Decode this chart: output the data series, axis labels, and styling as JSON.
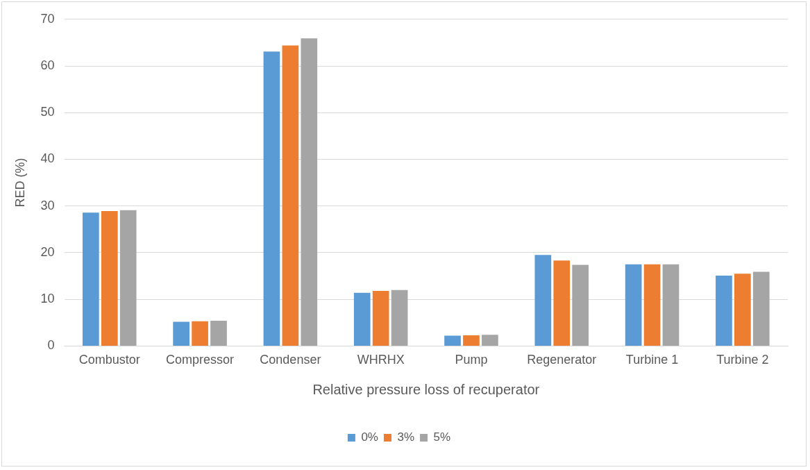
{
  "chart_data": {
    "type": "bar",
    "xlabel": "Relative pressure loss of recuperator",
    "ylabel": "RED (%)",
    "categories": [
      "Combustor",
      "Compressor",
      "Condenser",
      "WHRHX",
      "Pump",
      "Regenerator",
      "Turbine 1",
      "Turbine 2"
    ],
    "series": [
      {
        "name": "0%",
        "color": "#5b9bd5",
        "values": [
          28.6,
          5.2,
          63.1,
          11.4,
          2.2,
          19.5,
          17.5,
          15.1
        ]
      },
      {
        "name": "3%",
        "color": "#ed7d31",
        "values": [
          28.9,
          5.3,
          64.4,
          11.8,
          2.3,
          18.3,
          17.5,
          15.5
        ]
      },
      {
        "name": "5%",
        "color": "#a5a5a5",
        "values": [
          29.1,
          5.4,
          65.9,
          12.0,
          2.4,
          17.4,
          17.5,
          15.9
        ]
      }
    ],
    "ylim": [
      0,
      70
    ],
    "yticks": [
      0,
      10,
      20,
      30,
      40,
      50,
      60,
      70
    ],
    "grid": "y",
    "legend": "bottom"
  }
}
